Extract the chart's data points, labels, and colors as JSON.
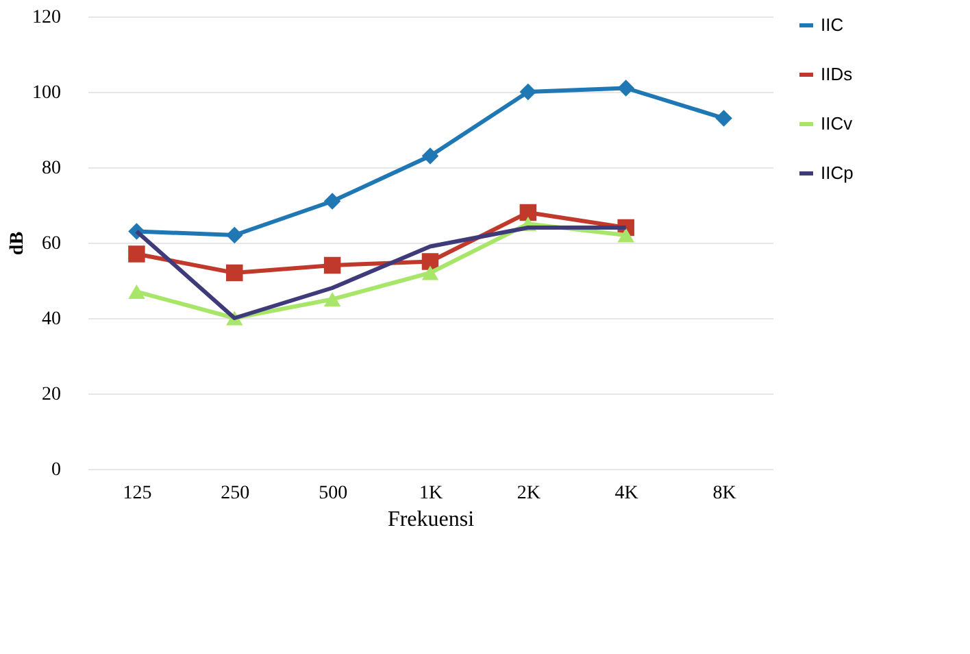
{
  "chart_data": {
    "type": "line",
    "xlabel": "Frekuensi",
    "ylabel": "dB",
    "categories": [
      "125",
      "250",
      "500",
      "1K",
      "2K",
      "4K",
      "8K"
    ],
    "series": [
      {
        "name": "IIC",
        "color": "#1f77b4",
        "marker": "diamond",
        "values": [
          63,
          62,
          71,
          83,
          100,
          101,
          93
        ]
      },
      {
        "name": "IIDs",
        "color": "#c0392b",
        "marker": "square",
        "values": [
          57,
          52,
          54,
          55,
          68,
          64,
          null
        ]
      },
      {
        "name": "IICv",
        "color": "#a8e66a",
        "marker": "triangle",
        "values": [
          47,
          40,
          45,
          52,
          65,
          62,
          null
        ]
      },
      {
        "name": "IICp",
        "color": "#3f3a7a",
        "marker": "none",
        "values": [
          63,
          40,
          48,
          59,
          64,
          64,
          null
        ]
      }
    ],
    "ylim": [
      0,
      120
    ],
    "yticks": [
      0,
      20,
      40,
      60,
      80,
      100,
      120
    ],
    "grid": "y",
    "legend": "right"
  }
}
